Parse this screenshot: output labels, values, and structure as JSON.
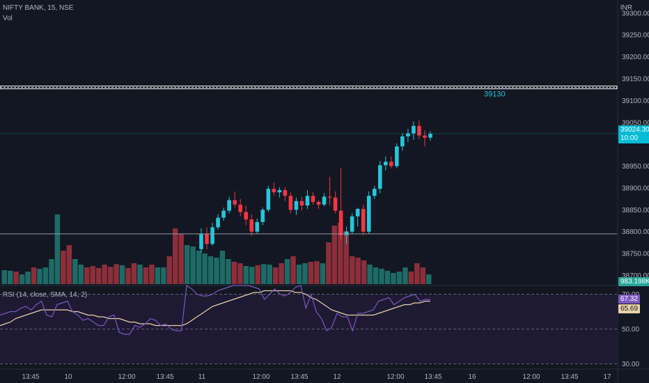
{
  "header": {
    "symbol_legend": "NIFTY BANK, 15, NSE",
    "volume_legend": "Vol",
    "currency": "INR"
  },
  "rsi_legend": "RSI (14, close, SMA, 14, 2)",
  "colors": {
    "background": "#131722",
    "up": "#26c6da",
    "down": "#f23645",
    "vol_up": "#1e6b66",
    "vol_down": "#8c2f3a",
    "rsi_line": "#7e57c2",
    "rsi_ma": "#ead2a8",
    "rsi_band_fill": "#1e1a33",
    "grid": "#2a2e39",
    "axis_text": "#b2b5be",
    "level_line": "#ffffff",
    "level_label": "#26c6da"
  },
  "chart_data": [
    {
      "type": "candlestick",
      "price_axis": {
        "ticks": [
          39300,
          39250,
          39200,
          39150,
          39100,
          39050,
          38950,
          38900,
          38850,
          38800,
          38750,
          38700
        ],
        "tick_labels": [
          "39300.00",
          "39250.00",
          "39200.00",
          "39150.00",
          "39100.00",
          "39050.00",
          "38950.00",
          "38900.00",
          "38850.00",
          "38800.00",
          "38750.00",
          "38700.00"
        ],
        "range": [
          38680,
          39330
        ]
      },
      "time_axis": {
        "labels": [
          "13:45",
          "10",
          "12:00",
          "13:45",
          "11",
          "12:00",
          "13:45",
          "12",
          "12:00",
          "13:45",
          "16",
          "12:00",
          "13:45",
          "17"
        ]
      },
      "horizontal_lines": [
        {
          "value": 39130,
          "label": "39130",
          "style": "double"
        },
        {
          "value": 38795,
          "label": "",
          "style": "solid"
        }
      ],
      "last_price": {
        "value": 39024.3,
        "label": "39024.30",
        "time_label": "10:00"
      },
      "candles": [
        [
          38760,
          38808,
          38752,
          38795
        ],
        [
          38795,
          38810,
          38760,
          38772
        ],
        [
          38772,
          38820,
          38768,
          38810
        ],
        [
          38810,
          38840,
          38805,
          38832
        ],
        [
          38832,
          38855,
          38825,
          38848
        ],
        [
          38848,
          38880,
          38842,
          38872
        ],
        [
          38872,
          38892,
          38855,
          38862
        ],
        [
          38862,
          38875,
          38835,
          38845
        ],
        [
          38845,
          38860,
          38815,
          38828
        ],
        [
          38828,
          38840,
          38790,
          38800
        ],
        [
          38800,
          38830,
          38795,
          38822
        ],
        [
          38822,
          38855,
          38815,
          38850
        ],
        [
          38850,
          38905,
          38845,
          38898
        ],
        [
          38898,
          38912,
          38882,
          38890
        ],
        [
          38890,
          38902,
          38878,
          38895
        ],
        [
          38895,
          38902,
          38870,
          38882
        ],
        [
          38882,
          38890,
          38842,
          38850
        ],
        [
          38850,
          38878,
          38838,
          38870
        ],
        [
          38870,
          38880,
          38848,
          38860
        ],
        [
          38860,
          38895,
          38852,
          38882
        ],
        [
          38882,
          38890,
          38862,
          38868
        ],
        [
          38868,
          38872,
          38852,
          38862
        ],
        [
          38862,
          38888,
          38858,
          38880
        ],
        [
          38880,
          38925,
          38860,
          38878
        ],
        [
          38878,
          38892,
          38842,
          38848
        ],
        [
          38848,
          38945,
          38782,
          38792
        ],
        [
          38792,
          38812,
          38772,
          38800
        ],
        [
          38800,
          38842,
          38795,
          38835
        ],
        [
          38835,
          38855,
          38812,
          38852
        ],
        [
          38852,
          38862,
          38792,
          38800
        ],
        [
          38800,
          38892,
          38795,
          38882
        ],
        [
          38882,
          38905,
          38875,
          38898
        ],
        [
          38898,
          38962,
          38888,
          38952
        ],
        [
          38952,
          38972,
          38940,
          38960
        ],
        [
          38960,
          38972,
          38945,
          38950
        ],
        [
          38950,
          39002,
          38945,
          38995
        ],
        [
          38995,
          39025,
          38985,
          39018
        ],
        [
          39018,
          39035,
          39005,
          39025
        ],
        [
          39025,
          39052,
          39010,
          39042
        ],
        [
          39042,
          39055,
          39012,
          39020
        ],
        [
          39020,
          39032,
          38995,
          39015
        ],
        [
          39015,
          39030,
          39008,
          39024
        ]
      ]
    },
    {
      "type": "bar",
      "name": "Vol",
      "last_value_label": "983.198K",
      "values": [
        50,
        48,
        45,
        35,
        45,
        60,
        55,
        60,
        90,
        250,
        120,
        140,
        90,
        70,
        60,
        65,
        58,
        70,
        62,
        72,
        68,
        58,
        75,
        70,
        60,
        70,
        60,
        60,
        100,
        200,
        180,
        140,
        135,
        120,
        110,
        100,
        95,
        120,
        90,
        80,
        75,
        65,
        62,
        68,
        72,
        70,
        60,
        75,
        90,
        100,
        70,
        75,
        80,
        82,
        75,
        150,
        210,
        220,
        190,
        100,
        95,
        85,
        70,
        60,
        55,
        48,
        40,
        45,
        60,
        45,
        75,
        60,
        35
      ],
      "directions": [
        "u",
        "u",
        "d",
        "u",
        "u",
        "d",
        "u",
        "u",
        "u",
        "u",
        "d",
        "d",
        "u",
        "u",
        "d",
        "d",
        "d",
        "d",
        "d",
        "d",
        "u",
        "d",
        "d",
        "u",
        "d",
        "d",
        "u",
        "u",
        "d",
        "d",
        "d",
        "u",
        "u",
        "u",
        "u",
        "u",
        "u",
        "u",
        "u",
        "d",
        "d",
        "u",
        "u",
        "d",
        "u",
        "u",
        "d",
        "d",
        "u",
        "d",
        "u",
        "u",
        "d",
        "d",
        "u",
        "d",
        "d",
        "d",
        "d",
        "d",
        "d",
        "d",
        "u",
        "u",
        "u",
        "u",
        "u",
        "u",
        "u",
        "d",
        "d",
        "d",
        "u"
      ]
    },
    {
      "type": "line",
      "name": "RSI",
      "axis_labels": [
        "70.00",
        "50.00",
        "30.00"
      ],
      "ticks": [
        70,
        50,
        30
      ],
      "band": [
        30,
        70
      ],
      "range": [
        27,
        75
      ],
      "rsi_value_label": "67.32",
      "ma_value_label": "65.69",
      "rsi_values": [
        58,
        59,
        60,
        60,
        62,
        63,
        61,
        64,
        66,
        58,
        57,
        64,
        65,
        66,
        60,
        58,
        55,
        56,
        54,
        52,
        52,
        57,
        58,
        48,
        47,
        47,
        52,
        51,
        53,
        56,
        55,
        52,
        53,
        50,
        49,
        49,
        75,
        73,
        70,
        69,
        69,
        70,
        72,
        73,
        74,
        75,
        76,
        76,
        76,
        74,
        73,
        67,
        70,
        73,
        70,
        69,
        71,
        74,
        75,
        62,
        70,
        60,
        56,
        49,
        51,
        59,
        57,
        57,
        49,
        59,
        59,
        60,
        61,
        66,
        67,
        68,
        64,
        66,
        68,
        69,
        70,
        66,
        67,
        67
      ],
      "ma_values": [
        52,
        53,
        54,
        56,
        57,
        58,
        59,
        60,
        61,
        61,
        61,
        61,
        61,
        61,
        60,
        60,
        59,
        58,
        58,
        57,
        57,
        56,
        56,
        56,
        55,
        54,
        54,
        53,
        53,
        53,
        52,
        52,
        52,
        52,
        52,
        52,
        53,
        55,
        57,
        59,
        61,
        63,
        64,
        65,
        66,
        67,
        68,
        69,
        70,
        71,
        71,
        72,
        72,
        72,
        72,
        72,
        72,
        71,
        71,
        70,
        68,
        67,
        65,
        63,
        61,
        60,
        59,
        58,
        58,
        58,
        58,
        58,
        58,
        59,
        60,
        61,
        62,
        63,
        64,
        64,
        65,
        65,
        66,
        66
      ]
    }
  ]
}
